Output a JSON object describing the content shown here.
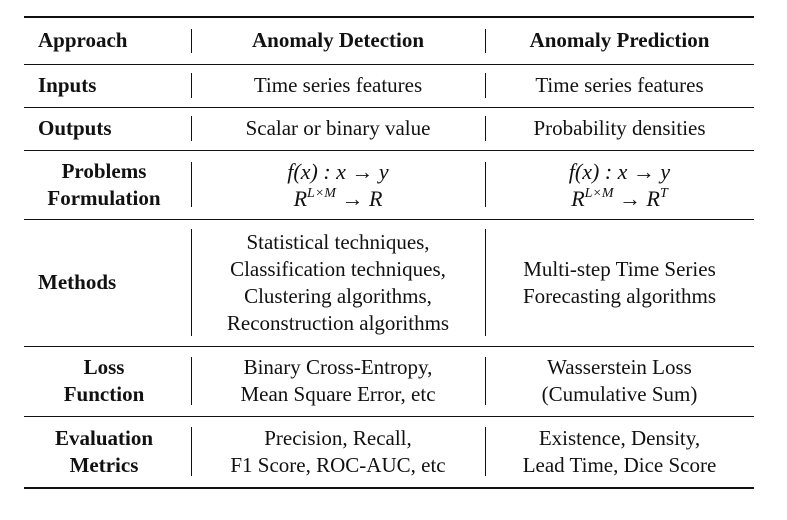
{
  "table": {
    "header": [
      "Approach",
      "Anomaly Detection",
      "Anomaly Prediction"
    ],
    "rows": [
      {
        "label": [
          "Inputs"
        ],
        "detection": [
          "Time series features"
        ],
        "prediction": [
          "Time series features"
        ]
      },
      {
        "label": [
          "Outputs"
        ],
        "detection": [
          "Scalar or binary value"
        ],
        "prediction": [
          "Probability densities"
        ]
      },
      {
        "label": [
          "Problems",
          "Formulation"
        ],
        "detection": [
          "f(x) : x → y",
          "R^{L×M} → R"
        ],
        "prediction": [
          "f(x) : x → y",
          "R^{L×M} → R^T"
        ]
      },
      {
        "label": [
          "Methods"
        ],
        "detection": [
          "Statistical techniques,",
          "Classification techniques,",
          "Clustering algorithms,",
          "Reconstruction algorithms"
        ],
        "prediction": [
          "Multi-step Time Series",
          "Forecasting algorithms"
        ]
      },
      {
        "label": [
          "Loss",
          "Function"
        ],
        "detection": [
          "Binary Cross-Entropy,",
          "Mean Square Error, etc"
        ],
        "prediction": [
          "Wasserstein Loss",
          "(Cumulative Sum)"
        ]
      },
      {
        "label": [
          "Evaluation",
          "Metrics"
        ],
        "detection": [
          "Precision, Recall,",
          "F1 Score, ROC-AUC, etc"
        ],
        "prediction": [
          "Existence, Density,",
          "Lead Time, Dice Score"
        ]
      }
    ]
  },
  "math": {
    "det_line1": "f(x) : x → y",
    "det_line2_base": "R",
    "det_line2_sup": "L×M",
    "det_line2_tail": "→ R",
    "pred_line1": "f(x) : x → y",
    "pred_line2_base": "R",
    "pred_line2_sup": "L×M",
    "pred_line2_tail_base": "→ R",
    "pred_line2_tail_sup": "T"
  }
}
